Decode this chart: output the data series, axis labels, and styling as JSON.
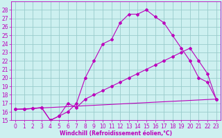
{
  "title": "",
  "xlabel": "Windchill (Refroidissement éolien,°C)",
  "bg_color": "#cdf0f0",
  "grid_color": "#99cccc",
  "line_color": "#bb00bb",
  "xlim": [
    -0.5,
    23.5
  ],
  "ylim": [
    15,
    29
  ],
  "xticks": [
    0,
    1,
    2,
    3,
    4,
    5,
    6,
    7,
    8,
    9,
    10,
    11,
    12,
    13,
    14,
    15,
    16,
    17,
    18,
    19,
    20,
    21,
    22,
    23
  ],
  "yticks": [
    15,
    16,
    17,
    18,
    19,
    20,
    21,
    22,
    23,
    24,
    25,
    26,
    27,
    28
  ],
  "line1_x": [
    0,
    1,
    2,
    3,
    4,
    5,
    6,
    7,
    8,
    9,
    10,
    11,
    12,
    13,
    14,
    15,
    16,
    17,
    18,
    19,
    20,
    21,
    22,
    23
  ],
  "line1_y": [
    16.3,
    16.3,
    16.4,
    16.5,
    15.0,
    15.5,
    16.0,
    17.0,
    20.0,
    22.0,
    24.0,
    24.5,
    26.5,
    27.5,
    27.5,
    28.0,
    27.2,
    26.5,
    25.0,
    23.5,
    22.0,
    20.0,
    19.5,
    17.5
  ],
  "line2_x": [
    0,
    1,
    2,
    3,
    4,
    5,
    6,
    7,
    8,
    9,
    10,
    11,
    12,
    13,
    14,
    15,
    16,
    17,
    18,
    19,
    20,
    21,
    22,
    23
  ],
  "line2_y": [
    16.3,
    16.3,
    16.4,
    16.5,
    15.0,
    15.5,
    17.0,
    16.5,
    17.5,
    18.0,
    18.5,
    19.0,
    19.5,
    20.0,
    20.5,
    21.0,
    21.5,
    22.0,
    22.5,
    23.0,
    23.5,
    22.0,
    20.5,
    17.5
  ],
  "line3_x": [
    0,
    23
  ],
  "line3_y": [
    16.3,
    17.5
  ],
  "tick_fontsize": 5.5,
  "xlabel_fontsize": 5.5
}
